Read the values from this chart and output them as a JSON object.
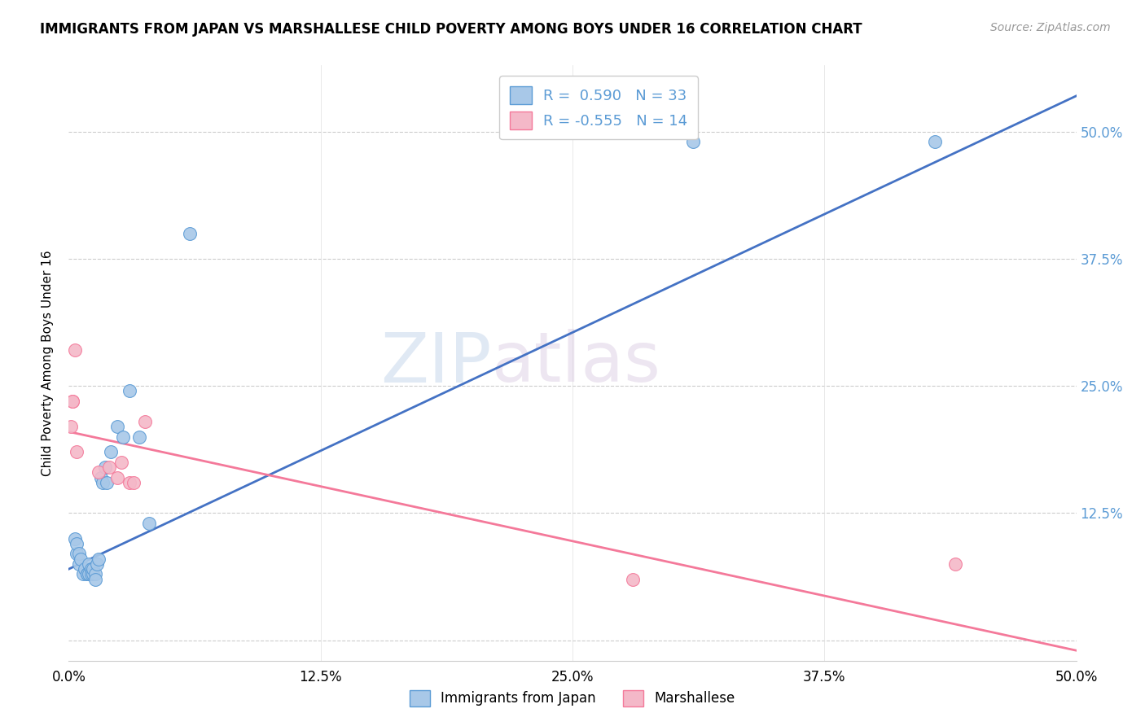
{
  "title": "IMMIGRANTS FROM JAPAN VS MARSHALLESE CHILD POVERTY AMONG BOYS UNDER 16 CORRELATION CHART",
  "source": "Source: ZipAtlas.com",
  "ylabel": "Child Poverty Among Boys Under 16",
  "xlim": [
    0.0,
    0.5
  ],
  "ylim": [
    -0.02,
    0.565
  ],
  "japan_color": "#a8c8e8",
  "marshallese_color": "#f4b8c8",
  "japan_edge_color": "#5b9bd5",
  "marshallese_edge_color": "#f4799a",
  "japan_line_color": "#4472c4",
  "marshallese_line_color": "#f4799a",
  "right_label_color": "#5b9bd5",
  "r_japan": "0.590",
  "n_japan": "33",
  "r_marshallese": "-0.555",
  "n_marshallese": "14",
  "watermark_zip": "ZIP",
  "watermark_atlas": "atlas",
  "ytick_pos": [
    0.0,
    0.125,
    0.25,
    0.375,
    0.5
  ],
  "xtick_pos": [
    0.0,
    0.125,
    0.25,
    0.375,
    0.5
  ],
  "xtick_labels": [
    "0.0%",
    "12.5%",
    "25.0%",
    "37.5%",
    "50.0%"
  ],
  "right_ytick_labels": [
    "50.0%",
    "37.5%",
    "25.0%",
    "12.5%",
    ""
  ],
  "japan_line_x0": 0.0,
  "japan_line_y0": 0.07,
  "japan_line_x1": 0.5,
  "japan_line_y1": 0.535,
  "marsh_line_x0": 0.0,
  "marsh_line_y0": 0.205,
  "marsh_line_x1": 0.5,
  "marsh_line_y1": -0.01,
  "japan_scatter_x": [
    0.003,
    0.004,
    0.004,
    0.005,
    0.005,
    0.006,
    0.007,
    0.008,
    0.009,
    0.009,
    0.01,
    0.01,
    0.011,
    0.011,
    0.012,
    0.012,
    0.013,
    0.013,
    0.014,
    0.015,
    0.016,
    0.017,
    0.018,
    0.019,
    0.021,
    0.024,
    0.027,
    0.03,
    0.035,
    0.04,
    0.06,
    0.31,
    0.43
  ],
  "japan_scatter_y": [
    0.1,
    0.085,
    0.095,
    0.075,
    0.085,
    0.08,
    0.065,
    0.07,
    0.065,
    0.065,
    0.065,
    0.075,
    0.07,
    0.065,
    0.065,
    0.07,
    0.065,
    0.06,
    0.075,
    0.08,
    0.16,
    0.155,
    0.17,
    0.155,
    0.185,
    0.21,
    0.2,
    0.245,
    0.2,
    0.115,
    0.4,
    0.49,
    0.49
  ],
  "marshallese_scatter_x": [
    0.001,
    0.002,
    0.002,
    0.003,
    0.004,
    0.015,
    0.02,
    0.024,
    0.026,
    0.03,
    0.032,
    0.038,
    0.28,
    0.44
  ],
  "marshallese_scatter_y": [
    0.21,
    0.235,
    0.235,
    0.285,
    0.185,
    0.165,
    0.17,
    0.16,
    0.175,
    0.155,
    0.155,
    0.215,
    0.06,
    0.075
  ]
}
